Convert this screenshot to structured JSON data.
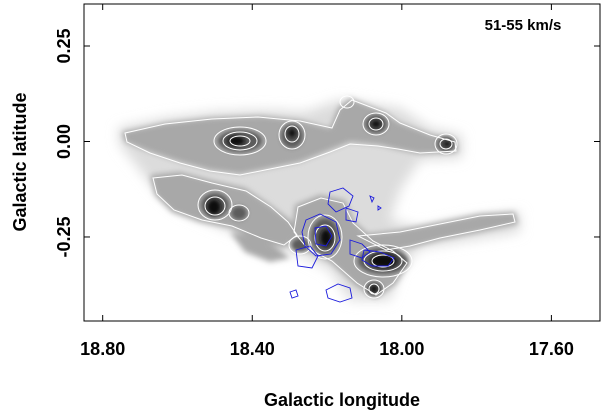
{
  "chart_data": {
    "type": "heatmap",
    "annotation": "51-55 km/s",
    "xlabel": "Galactic longitude",
    "ylabel": "Galactic latitude",
    "xlim": [
      18.85,
      17.47
    ],
    "ylim": [
      -0.47,
      0.36
    ],
    "x_reversed": true,
    "x_ticks": [
      "18.80",
      "18.40",
      "18.00",
      "17.60"
    ],
    "x_tick_values": [
      18.8,
      18.4,
      18.0,
      17.6
    ],
    "y_ticks": [
      "0.25",
      "0.00",
      "-0.25"
    ],
    "y_tick_values": [
      0.25,
      0.0,
      -0.25
    ],
    "grid": false,
    "colormap": "greyscale (white low, black high)",
    "contour_color": "#ffffff",
    "overlay_contour_color": "#1010cc",
    "emission_peaks": [
      {
        "l": 18.46,
        "b": 0.01,
        "level": 0.95
      },
      {
        "l": 18.29,
        "b": 0.02,
        "level": 0.8
      },
      {
        "l": 18.08,
        "b": 0.05,
        "level": 0.8
      },
      {
        "l": 17.91,
        "b": 0.0,
        "level": 0.85
      },
      {
        "l": 18.12,
        "b": 0.11,
        "level": 0.5
      },
      {
        "l": 18.51,
        "b": -0.165,
        "level": 0.95
      },
      {
        "l": 18.41,
        "b": -0.2,
        "level": 0.7
      },
      {
        "l": 18.22,
        "b": -0.245,
        "level": 0.95
      },
      {
        "l": 18.15,
        "b": -0.25,
        "level": 0.65
      },
      {
        "l": 18.11,
        "b": -0.305,
        "level": 1.0
      },
      {
        "l": 18.09,
        "b": -0.375,
        "level": 0.85
      },
      {
        "l": 18.3,
        "b": -0.26,
        "level": 0.55
      }
    ]
  }
}
